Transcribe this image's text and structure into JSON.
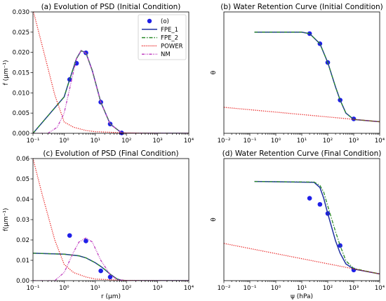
{
  "chart_data": [
    {
      "type": "line",
      "title": "(a) Evolution of PSD (Initial Condition)",
      "xlabel": "",
      "ylabel": "f (μm⁻¹)",
      "xscale": "log",
      "xlim": [
        0.1,
        10000
      ],
      "ylim": [
        0,
        0.03
      ],
      "xticks": [
        0.1,
        1,
        10,
        100,
        1000,
        10000
      ],
      "xticklabels": [
        "10⁻¹",
        "10⁰",
        "10¹",
        "10²",
        "10³",
        "10⁴"
      ],
      "yticks": [
        0,
        0.005,
        0.01,
        0.015,
        0.02,
        0.025,
        0.03
      ],
      "yticklabels": [
        "0.000",
        "0.005",
        "0.010",
        "0.015",
        "0.020",
        "0.025",
        "0.030"
      ],
      "legend": "top-right",
      "series": [
        {
          "name": "(o)",
          "kind": "marker",
          "color": "#1f1fe8",
          "x": [
            1.5,
            2.5,
            5,
            15,
            30,
            70
          ],
          "y": [
            0.0133,
            0.0173,
            0.0199,
            0.0077,
            0.0023,
            0.0001
          ]
        },
        {
          "name": "FPE_1",
          "kind": "solid",
          "color": "#1f2fa0",
          "x": [
            0.1,
            1,
            1.5,
            2.5,
            3.5,
            5,
            8,
            15,
            30,
            70,
            100,
            10000
          ],
          "y": [
            0,
            0.009,
            0.0133,
            0.0185,
            0.0204,
            0.0199,
            0.0155,
            0.0077,
            0.0023,
            0.0001,
            0,
            0
          ]
        },
        {
          "name": "FPE_2",
          "kind": "dashdot",
          "color": "#2a8a2a",
          "x": [
            0.1,
            1,
            1.5,
            2.5,
            3.5,
            5,
            8,
            15,
            30,
            70,
            100,
            10000
          ],
          "y": [
            0,
            0.009,
            0.0133,
            0.0185,
            0.0204,
            0.0199,
            0.0155,
            0.0077,
            0.0023,
            0.0001,
            0,
            0
          ]
        },
        {
          "name": "POWER",
          "kind": "dotted",
          "color": "#e81818",
          "x": [
            0.1,
            0.2,
            0.5,
            1,
            2,
            5,
            10,
            100,
            1000,
            10000
          ],
          "y": [
            0.0305,
            0.0215,
            0.0095,
            0.0028,
            0.0015,
            0.0007,
            0.0004,
            0.0001,
            0,
            0
          ]
        },
        {
          "name": "NM",
          "kind": "dashdotdot",
          "color": "#c040c0",
          "x": [
            0.1,
            0.3,
            0.6,
            1,
            1.5,
            2.5,
            3.5,
            5,
            8,
            15,
            30,
            70,
            100,
            10000
          ],
          "y": [
            0,
            0,
            0.0015,
            0.005,
            0.011,
            0.0185,
            0.0205,
            0.0198,
            0.0155,
            0.0077,
            0.0023,
            0.0001,
            0,
            0
          ]
        }
      ]
    },
    {
      "type": "line",
      "title": "(b) Water Retention Curve (Initial Condition)",
      "xlabel": "",
      "ylabel": "θ",
      "xscale": "log",
      "xlim": [
        0.01,
        10000
      ],
      "ylim": [
        0.2,
        0.62
      ],
      "xticks": [
        0.01,
        0.1,
        1,
        10,
        100,
        1000,
        10000
      ],
      "xticklabels": [
        "10⁻²",
        "10⁻¹",
        "10⁰",
        "10¹",
        "10²",
        "10³",
        "10⁴"
      ],
      "yticks": [],
      "yticklabels": [],
      "series": [
        {
          "name": "(o)",
          "kind": "marker",
          "color": "#1f1fe8",
          "x": [
            20,
            50,
            100,
            300,
            1000
          ],
          "y": [
            0.545,
            0.51,
            0.445,
            0.315,
            0.25
          ]
        },
        {
          "name": "FPE_1",
          "kind": "solid",
          "color": "#1f2fa0",
          "x": [
            0.15,
            10,
            20,
            50,
            100,
            200,
            300,
            500,
            1000,
            10000
          ],
          "y": [
            0.55,
            0.55,
            0.545,
            0.51,
            0.445,
            0.36,
            0.315,
            0.27,
            0.248,
            0.24
          ]
        },
        {
          "name": "FPE_2",
          "kind": "dashdot",
          "color": "#2a8a2a",
          "x": [
            0.15,
            10,
            20,
            50,
            100,
            200,
            300,
            500,
            1000,
            10000
          ],
          "y": [
            0.55,
            0.55,
            0.545,
            0.51,
            0.445,
            0.36,
            0.315,
            0.27,
            0.248,
            0.24
          ]
        },
        {
          "name": "POWER",
          "kind": "dotted",
          "color": "#e81818",
          "x": [
            0.01,
            10000
          ],
          "y": [
            0.29,
            0.24
          ]
        }
      ]
    },
    {
      "type": "line",
      "title": "(c) Evolution of PSD (Final Condition)",
      "xlabel": "r (μm)",
      "ylabel": "f(μm⁻¹)",
      "xscale": "log",
      "xlim": [
        0.1,
        10000
      ],
      "ylim": [
        0,
        0.06
      ],
      "xticks": [
        0.1,
        1,
        10,
        100,
        1000,
        10000
      ],
      "xticklabels": [
        "10⁻¹",
        "10⁰",
        "10¹",
        "10²",
        "10³",
        "10⁴"
      ],
      "yticks": [
        0,
        0.01,
        0.02,
        0.03,
        0.04,
        0.05,
        0.06
      ],
      "yticklabels": [
        "0.00",
        "0.01",
        "0.02",
        "0.03",
        "0.04",
        "0.05",
        "0.06"
      ],
      "series": [
        {
          "name": "(o)",
          "kind": "marker",
          "color": "#1f1fe8",
          "x": [
            1.5,
            5,
            15,
            30
          ],
          "y": [
            0.0222,
            0.0195,
            0.0048,
            0.0018
          ]
        },
        {
          "name": "FPE_1",
          "kind": "solid",
          "color": "#1f2fa0",
          "x": [
            0.1,
            1,
            3,
            5,
            10,
            15,
            20,
            30,
            50,
            70,
            100,
            10000
          ],
          "y": [
            0.0135,
            0.013,
            0.0122,
            0.0112,
            0.0088,
            0.007,
            0.0055,
            0.0032,
            0.0008,
            0.0002,
            0,
            0
          ]
        },
        {
          "name": "FPE_2",
          "kind": "dashdot",
          "color": "#2a8a2a",
          "x": [
            0.1,
            1,
            3,
            5,
            10,
            15,
            20,
            30,
            50,
            70,
            100,
            10000
          ],
          "y": [
            0.0135,
            0.013,
            0.0122,
            0.0112,
            0.0088,
            0.007,
            0.0055,
            0.0032,
            0.0008,
            0.0002,
            0,
            0
          ]
        },
        {
          "name": "POWER",
          "kind": "dotted",
          "color": "#e81818",
          "x": [
            0.1,
            0.2,
            0.5,
            1,
            2,
            5,
            10,
            100,
            1000,
            10000
          ],
          "y": [
            0.06,
            0.042,
            0.02,
            0.008,
            0.004,
            0.0018,
            0.0008,
            0.0001,
            0,
            0
          ]
        },
        {
          "name": "NM",
          "kind": "dashdotdot",
          "color": "#c040c0",
          "x": [
            0.1,
            0.5,
            1,
            2,
            3,
            5,
            8,
            15,
            30,
            50,
            100,
            10000
          ],
          "y": [
            0,
            0,
            0.004,
            0.014,
            0.019,
            0.021,
            0.019,
            0.01,
            0.003,
            0.0005,
            0,
            0
          ]
        }
      ]
    },
    {
      "type": "line",
      "title": "(d) Water Retention Curve (Final Condition)",
      "xlabel": "ψ (hPa)",
      "ylabel": "θ",
      "xscale": "log",
      "xlim": [
        0.01,
        10000
      ],
      "ylim": [
        0.25,
        0.65
      ],
      "xticks": [
        0.01,
        0.1,
        1,
        10,
        100,
        1000,
        10000
      ],
      "xticklabels": [
        "10⁻²",
        "10⁻¹",
        "10⁰",
        "10¹",
        "10²",
        "10³",
        "10⁴"
      ],
      "yticks": [],
      "yticklabels": [],
      "series": [
        {
          "name": "(o)",
          "kind": "marker",
          "color": "#1f1fe8",
          "x": [
            20,
            50,
            100,
            300,
            1000
          ],
          "y": [
            0.52,
            0.5,
            0.47,
            0.365,
            0.285
          ]
        },
        {
          "name": "FPE_1",
          "kind": "solid",
          "color": "#1f2fa0",
          "x": [
            0.15,
            30,
            50,
            70,
            100,
            200,
            300,
            500,
            1000,
            10000
          ],
          "y": [
            0.575,
            0.572,
            0.555,
            0.52,
            0.47,
            0.38,
            0.34,
            0.305,
            0.288,
            0.272
          ]
        },
        {
          "name": "FPE_2",
          "kind": "dashdot",
          "color": "#2a8a2a",
          "x": [
            0.15,
            30,
            50,
            70,
            100,
            200,
            300,
            500,
            1000,
            10000
          ],
          "y": [
            0.575,
            0.573,
            0.562,
            0.54,
            0.495,
            0.41,
            0.365,
            0.315,
            0.29,
            0.272
          ]
        },
        {
          "name": "POWER",
          "kind": "dotted",
          "color": "#e81818",
          "x": [
            0.01,
            10000
          ],
          "y": [
            0.372,
            0.272
          ]
        }
      ]
    }
  ]
}
